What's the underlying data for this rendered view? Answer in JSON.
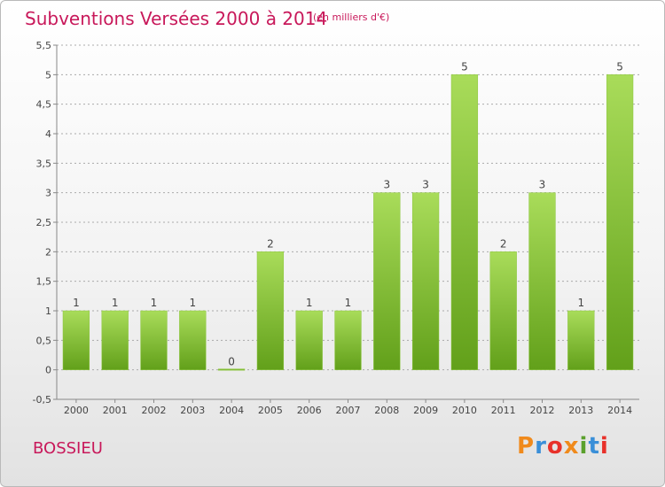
{
  "title": "Subventions Versées 2000 à 2014",
  "subtitle": "(en milliers d'€)",
  "commune": "BOSSIEU",
  "logo": {
    "text": "Proxiti",
    "colors": [
      "#f08a1c",
      "#3a8fd8",
      "#e8312a",
      "#f08a1c",
      "#5aa02c",
      "#3a8fd8",
      "#e8312a"
    ]
  },
  "colors": {
    "title": "#c8185a",
    "bar_light": "#a9dc5a",
    "bar_dark": "#62a01a",
    "grid": "#aaaaaa",
    "axis": "#888888"
  },
  "chart_data": {
    "type": "bar",
    "categories": [
      "2000",
      "2001",
      "2002",
      "2003",
      "2004",
      "2005",
      "2006",
      "2007",
      "2008",
      "2009",
      "2010",
      "2011",
      "2012",
      "2013",
      "2014"
    ],
    "values": [
      1,
      1,
      1,
      1,
      0,
      2,
      1,
      1,
      3,
      3,
      5,
      2,
      3,
      1,
      5
    ],
    "data_labels": [
      "1",
      "1",
      "1",
      "1",
      "0",
      "2",
      "1",
      "1",
      "3",
      "3",
      "5",
      "2",
      "3",
      "1",
      "5"
    ],
    "y_ticks": [
      "-0,5",
      "0",
      "0,5",
      "1",
      "1,5",
      "2",
      "2,5",
      "3",
      "3,5",
      "4",
      "4,5",
      "5",
      "5,5"
    ],
    "ylim": [
      -0.5,
      5.5
    ],
    "grid": true
  }
}
